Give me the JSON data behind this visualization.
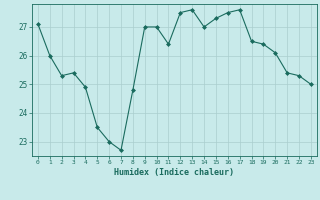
{
  "x": [
    0,
    1,
    2,
    3,
    4,
    5,
    6,
    7,
    8,
    9,
    10,
    11,
    12,
    13,
    14,
    15,
    16,
    17,
    18,
    19,
    20,
    21,
    22,
    23
  ],
  "y": [
    27.1,
    26.0,
    25.3,
    25.4,
    24.9,
    23.5,
    23.0,
    22.7,
    24.8,
    27.0,
    27.0,
    26.4,
    27.5,
    27.6,
    27.0,
    27.3,
    27.5,
    27.6,
    26.5,
    26.4,
    26.1,
    25.4,
    25.3,
    25.0
  ],
  "line_color": "#1a6b5e",
  "marker": "D",
  "marker_size": 2,
  "bg_color": "#c8eaea",
  "grid_color": "#aacece",
  "tick_color": "#1a6b5e",
  "label_color": "#1a6b5e",
  "xlabel": "Humidex (Indice chaleur)",
  "ylim": [
    22.5,
    27.8
  ],
  "yticks": [
    23,
    24,
    25,
    26,
    27
  ],
  "xticks": [
    0,
    1,
    2,
    3,
    4,
    5,
    6,
    7,
    8,
    9,
    10,
    11,
    12,
    13,
    14,
    15,
    16,
    17,
    18,
    19,
    20,
    21,
    22,
    23
  ]
}
